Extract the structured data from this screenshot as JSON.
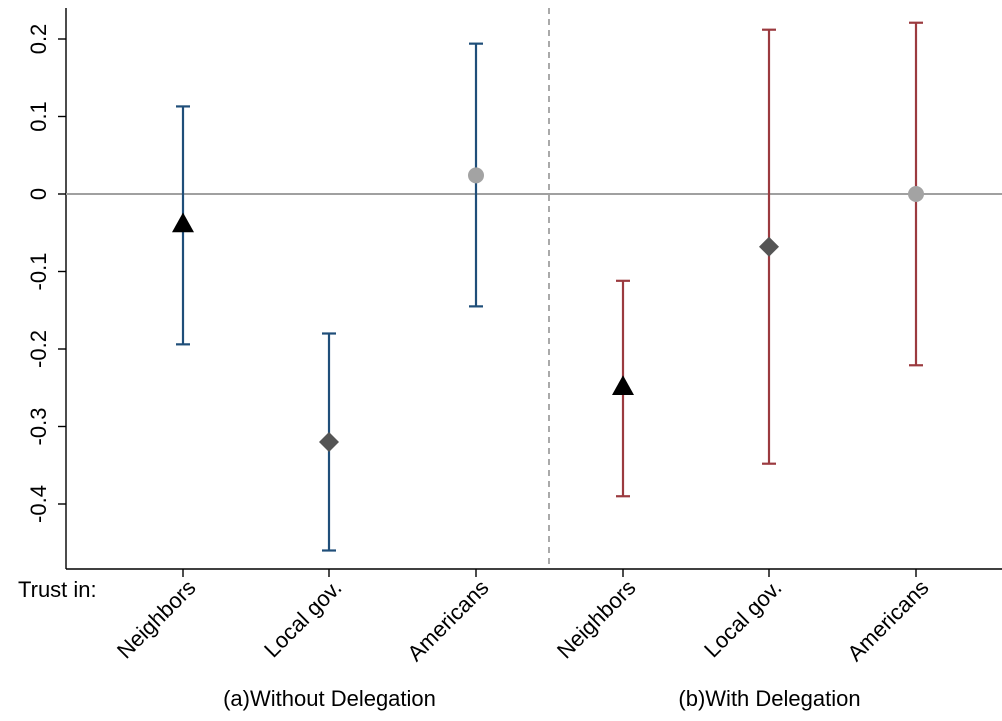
{
  "chart_data": {
    "type": "scatter",
    "subtype": "coefficient plot with confidence intervals",
    "row_label": "Trust in:",
    "y_ticks": [
      0.2,
      0.1,
      0,
      -0.1,
      -0.2,
      -0.3,
      -0.4
    ],
    "y_tick_labels": [
      "0.2",
      "0.1",
      "0",
      "-0.1",
      "-0.2",
      "-0.3",
      "-0.4"
    ],
    "ylim": [
      -0.48,
      0.24
    ],
    "reference_line_y": 0,
    "grid": false,
    "groups": [
      {
        "label": "(a)Without Delegation",
        "ci_color": "#1f4e79",
        "points": [
          {
            "category": "Neighbors",
            "estimate": -0.038,
            "ci_low": -0.194,
            "ci_high": 0.113,
            "marker": "triangle",
            "marker_color": "#000000"
          },
          {
            "category": "Local gov.",
            "estimate": -0.32,
            "ci_low": -0.46,
            "ci_high": -0.18,
            "marker": "diamond",
            "marker_color": "#555555"
          },
          {
            "category": "Americans",
            "estimate": 0.024,
            "ci_low": -0.145,
            "ci_high": 0.194,
            "marker": "circle",
            "marker_color": "#a3a3a3"
          }
        ]
      },
      {
        "label": "(b)With Delegation",
        "ci_color": "#9b3a3f",
        "points": [
          {
            "category": "Neighbors",
            "estimate": -0.248,
            "ci_low": -0.39,
            "ci_high": -0.112,
            "marker": "triangle",
            "marker_color": "#000000"
          },
          {
            "category": "Local gov.",
            "estimate": -0.068,
            "ci_low": -0.348,
            "ci_high": 0.212,
            "marker": "diamond",
            "marker_color": "#555555"
          },
          {
            "category": "Americans",
            "estimate": 0.0,
            "ci_low": -0.221,
            "ci_high": 0.221,
            "marker": "circle",
            "marker_color": "#a3a3a3"
          }
        ]
      }
    ]
  }
}
